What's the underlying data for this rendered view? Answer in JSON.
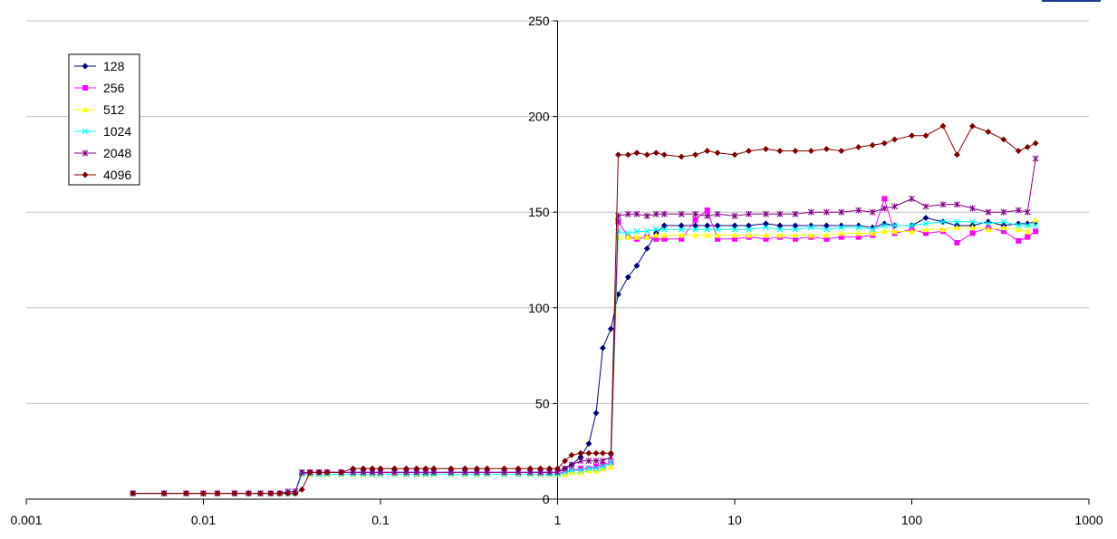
{
  "chart_data": {
    "type": "line",
    "title": "",
    "xlabel": "",
    "ylabel": "",
    "x_scale": "log",
    "xlim": [
      0.001,
      1000
    ],
    "ylim": [
      0,
      250
    ],
    "x_ticks": [
      0.001,
      0.01,
      0.1,
      1,
      10,
      100,
      1000
    ],
    "x_tick_labels": [
      "0.001",
      "0.01",
      "0.1",
      "1",
      "10",
      "100",
      "1000"
    ],
    "y_ticks": [
      0,
      50,
      100,
      150,
      200,
      250
    ],
    "y_tick_labels": [
      "0",
      "50",
      "100",
      "150",
      "200",
      "250"
    ],
    "grid": "horizontal",
    "legend_position": "top-left",
    "x": [
      0.004,
      0.006,
      0.008,
      0.01,
      0.012,
      0.015,
      0.018,
      0.021,
      0.024,
      0.027,
      0.03,
      0.033,
      0.036,
      0.04,
      0.045,
      0.05,
      0.06,
      0.07,
      0.08,
      0.09,
      0.1,
      0.12,
      0.14,
      0.16,
      0.18,
      0.2,
      0.25,
      0.3,
      0.35,
      0.4,
      0.5,
      0.6,
      0.7,
      0.8,
      0.9,
      1.0,
      1.1,
      1.2,
      1.35,
      1.5,
      1.65,
      1.8,
      2.0,
      2.2,
      2.5,
      2.8,
      3.2,
      3.6,
      4.0,
      5.0,
      6.0,
      7.0,
      8.0,
      10,
      12,
      15,
      18,
      22,
      27,
      33,
      40,
      50,
      60,
      70,
      80,
      100,
      120,
      150,
      180,
      220,
      270,
      330,
      400,
      450,
      500
    ],
    "series": [
      {
        "name": "128",
        "color": "#000080",
        "marker": "diamond",
        "values": [
          3,
          3,
          3,
          3,
          3,
          3,
          3,
          3,
          3,
          3,
          3,
          3,
          14,
          14,
          14,
          14,
          14,
          14,
          14,
          14,
          14,
          14,
          14,
          14,
          14,
          14,
          14,
          14,
          14,
          14,
          14,
          14,
          14,
          14,
          14,
          14,
          16,
          18,
          22,
          29,
          45,
          79,
          89,
          107,
          116,
          122,
          131,
          139,
          143,
          143,
          143,
          143,
          143,
          143,
          143,
          144,
          143,
          143,
          143,
          143,
          143,
          143,
          142,
          144,
          143,
          143,
          147,
          145,
          143,
          143,
          145,
          143,
          144,
          144,
          145
        ]
      },
      {
        "name": "256",
        "color": "#ff00ff",
        "marker": "square",
        "values": [
          3,
          3,
          3,
          3,
          3,
          3,
          3,
          3,
          3,
          3,
          3,
          3,
          13,
          14,
          14,
          14,
          14,
          14,
          14,
          14,
          14,
          14,
          14,
          14,
          14,
          14,
          14,
          14,
          14,
          14,
          14,
          14,
          14,
          14,
          14,
          14,
          14,
          15,
          16,
          16,
          17,
          18,
          19,
          145,
          137,
          136,
          137,
          136,
          136,
          136,
          146,
          151,
          136,
          136,
          137,
          136,
          137,
          136,
          137,
          136,
          137,
          137,
          138,
          157,
          139,
          141,
          139,
          140,
          134,
          139,
          142,
          140,
          135,
          137,
          140
        ]
      },
      {
        "name": "512",
        "color": "#ffff00",
        "marker": "triangle",
        "values": [
          3,
          3,
          3,
          3,
          3,
          3,
          3,
          3,
          3,
          3,
          3,
          3,
          13,
          13,
          13,
          13,
          13,
          13,
          13,
          13,
          13,
          13,
          13,
          13,
          13,
          13,
          13,
          13,
          13,
          13,
          13,
          13,
          13,
          13,
          13,
          13,
          13,
          14,
          14,
          15,
          15,
          16,
          17,
          137,
          137,
          137,
          137,
          138,
          138,
          138,
          138,
          138,
          138,
          138,
          138,
          138,
          138,
          138,
          138,
          138,
          139,
          139,
          139,
          140,
          140,
          140,
          141,
          141,
          142,
          142,
          141,
          142,
          141,
          140,
          146
        ]
      },
      {
        "name": "1024",
        "color": "#00ffff",
        "marker": "x",
        "values": [
          3,
          3,
          3,
          3,
          3,
          3,
          3,
          3,
          3,
          3,
          3,
          3,
          13,
          13,
          13,
          13,
          13,
          13,
          13,
          13,
          13,
          13,
          13,
          13,
          13,
          13,
          13,
          13,
          13,
          13,
          13,
          13,
          13,
          13,
          13,
          13,
          14,
          15,
          15,
          16,
          16,
          17,
          19,
          140,
          139,
          140,
          140,
          141,
          141,
          141,
          141,
          141,
          141,
          141,
          141,
          142,
          141,
          141,
          142,
          141,
          142,
          142,
          141,
          143,
          143,
          143,
          144,
          145,
          145,
          145,
          144,
          145,
          143,
          143,
          143
        ]
      },
      {
        "name": "2048",
        "color": "#800080",
        "marker": "star",
        "values": [
          3,
          3,
          3,
          3,
          3,
          3,
          3,
          3,
          3,
          3,
          4,
          4,
          14,
          14,
          14,
          14,
          14,
          14,
          14,
          14,
          14,
          14,
          14,
          14,
          14,
          14,
          14,
          14,
          14,
          14,
          14,
          14,
          14,
          14,
          14,
          14,
          16,
          18,
          20,
          20,
          20,
          20,
          22,
          148,
          149,
          149,
          148,
          149,
          149,
          149,
          149,
          148,
          149,
          148,
          149,
          149,
          149,
          149,
          150,
          150,
          150,
          151,
          150,
          152,
          153,
          157,
          153,
          154,
          154,
          152,
          150,
          150,
          151,
          150,
          178
        ]
      },
      {
        "name": "4096",
        "color": "#800000",
        "marker": "diamond",
        "values": [
          3,
          3,
          3,
          3,
          3,
          3,
          3,
          3,
          3,
          3,
          3,
          3,
          5,
          14,
          14,
          14,
          14,
          16,
          16,
          16,
          16,
          16,
          16,
          16,
          16,
          16,
          16,
          16,
          16,
          16,
          16,
          16,
          16,
          16,
          16,
          16,
          20,
          23,
          24,
          24,
          24,
          24,
          24,
          180,
          180,
          181,
          180,
          181,
          180,
          179,
          180,
          182,
          181,
          180,
          182,
          183,
          182,
          182,
          182,
          183,
          182,
          184,
          185,
          186,
          188,
          190,
          190,
          195,
          180,
          195,
          192,
          188,
          182,
          184,
          186
        ]
      }
    ]
  }
}
